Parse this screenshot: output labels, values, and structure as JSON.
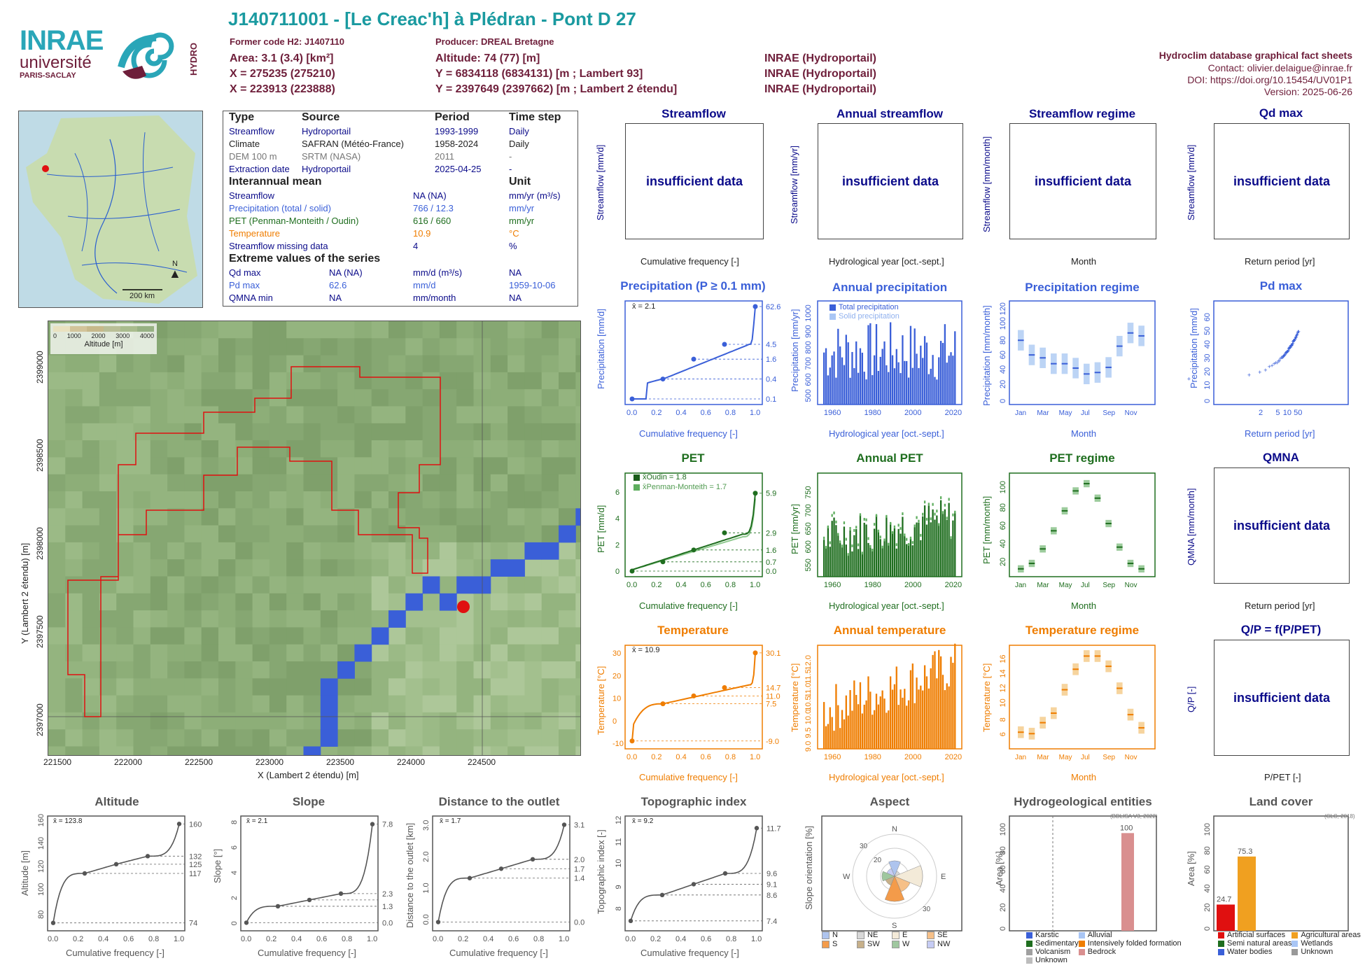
{
  "header": {
    "title": "J140711001 - [Le Creac'h] à Plédran - Pont D 27",
    "former_code": "Former code H2: J1407110",
    "producer": "Producer: DREAL Bretagne",
    "area": "Area: 3.1 (3.4) [km²]",
    "altitude": "Altitude: 74 (77) [m]",
    "x_l93": "X = 275235 (275210)",
    "y_l93": "Y = 6834118 (6834131) [m ; Lambert 93]",
    "x_l2": "X = 223913 (223888)",
    "y_l2": "Y = 2397649 (2397662) [m ; Lambert 2 étendu]",
    "src1": "INRAE (Hydroportail)",
    "src2": "INRAE (Hydroportail)",
    "src3": "INRAE (Hydroportail)",
    "db_title": "Hydroclim database graphical fact sheets",
    "contact": "Contact: olivier.delaigue@inrae.fr",
    "doi": "DOI: https://doi.org/10.15454/UV01P1",
    "version": "Version: 2025-06-26"
  },
  "logos": {
    "inrae": "INRAE",
    "universite": "université",
    "paris_saclay": "PARIS-SACLAY",
    "hydro": "HYDRO"
  },
  "overview_map": {
    "scale": "200 km",
    "north": "N"
  },
  "info_table": {
    "head": [
      "Type",
      "Source",
      "Period",
      "Time step"
    ],
    "rows": [
      [
        "Streamflow",
        "Hydroportail",
        "1993-1999",
        "Daily"
      ],
      [
        "Climate",
        "SAFRAN (Météo-France)",
        "1958-2024",
        "Daily"
      ],
      [
        "DEM 100 m",
        "SRTM (NASA)",
        "2011",
        "-"
      ],
      [
        "Extraction date",
        "Hydroportail",
        "2025-04-25",
        "-"
      ]
    ],
    "mean_title": "Interannual mean",
    "unit_title": "Unit",
    "means": [
      [
        "Streamflow",
        "NA (NA)",
        "mm/yr (m³/s)"
      ],
      [
        "Precipitation (total / solid)",
        "766 / 12.3",
        "mm/yr"
      ],
      [
        "PET (Penman-Monteith / Oudin)",
        "616 / 660",
        "mm/yr"
      ],
      [
        "Temperature",
        "10.9",
        "°C"
      ],
      [
        "Streamflow missing data",
        "4",
        "%"
      ]
    ],
    "extreme_title": "Extreme values of the series",
    "extremes": [
      [
        "Qd max",
        "NA (NA)",
        "mm/d (m³/s)",
        "NA"
      ],
      [
        "Pd max",
        "62.6",
        "mm/d",
        "1959-10-06"
      ],
      [
        "QMNA min",
        "NA",
        "mm/month",
        "NA"
      ]
    ]
  },
  "dem_map": {
    "legend_ticks": [
      "0",
      "1000",
      "2000",
      "3000",
      "4000"
    ],
    "legend_label": "Altitude [m]",
    "xticks": [
      "221500",
      "222000",
      "222500",
      "223000",
      "223500",
      "224000",
      "224500"
    ],
    "yticks": [
      "2397000",
      "2397500",
      "2398000",
      "2398500",
      "2399000"
    ],
    "xlabel": "X (Lambert 2 étendu) [m]",
    "ylabel": "Y (Lambert 2 étendu) [m]"
  },
  "panels": {
    "streamflow": {
      "title": "Streamflow",
      "ylabel": "Streamflow [mm/d]",
      "xlabel": "Cumulative frequency [-]",
      "msg": "insufficient data"
    },
    "annual_streamflow": {
      "title": "Annual streamflow",
      "ylabel": "Streamflow [mm/yr]",
      "xlabel": "Hydrological year [oct.-sept.]",
      "msg": "insufficient data"
    },
    "streamflow_regime": {
      "title": "Streamflow regime",
      "ylabel": "Streamflow [mm/month]",
      "xlabel": "Month",
      "msg": "insufficient data"
    },
    "qd_max": {
      "title": "Qd max",
      "ylabel": "Streamflow [mm/d]",
      "xlabel": "Return period [yr]",
      "msg": "insufficient data"
    },
    "precip": {
      "title": "Precipitation (P ≥ 0.1 mm)",
      "ylabel": "Precipitation [mm/d]",
      "xlabel": "Cumulative frequency [-]",
      "mean": "x̄ = 2.1"
    },
    "annual_precip": {
      "title": "Annual precipitation",
      "ylabel": "Precipitation [mm/yr]",
      "xlabel": "Hydrological year [oct.-sept.]",
      "leg1": "Total precipitation",
      "leg2": "Solid precipitation"
    },
    "precip_regime": {
      "title": "Precipitation regime",
      "ylabel": "Precipitation [mm/month]",
      "xlabel": "Month"
    },
    "pd_max": {
      "title": "Pd max",
      "ylabel": "Precipitation [mm/d]",
      "xlabel": "Return period [yr]"
    },
    "pet": {
      "title": "PET",
      "ylabel": "PET [mm/d]",
      "xlabel": "Cumulative frequency [-]",
      "mean1": "x̄Oudin = 1.8",
      "mean2": "x̄Penman-Monteith = 1.7"
    },
    "annual_pet": {
      "title": "Annual PET",
      "ylabel": "PET [mm/yr]",
      "xlabel": "Hydrological year [oct.-sept.]"
    },
    "pet_regime": {
      "title": "PET regime",
      "ylabel": "PET [mm/month]",
      "xlabel": "Month"
    },
    "qmna": {
      "title": "QMNA",
      "ylabel": "QMNA [mm/month]",
      "xlabel": "Return period [yr]",
      "msg": "insufficient data"
    },
    "temp": {
      "title": "Temperature",
      "ylabel": "Temperature [°C]",
      "xlabel": "Cumulative frequency [-]",
      "mean": "x̄ = 10.9"
    },
    "annual_temp": {
      "title": "Annual temperature",
      "ylabel": "Temperature [°C]",
      "xlabel": "Hydrological year [oct.-sept.]"
    },
    "temp_regime": {
      "title": "Temperature regime",
      "ylabel": "Temperature [°C]",
      "xlabel": "Month"
    },
    "qp": {
      "title": "Q/P = f(P/PET)",
      "ylabel": "Q/P [-]",
      "xlabel": "P/PET [-]",
      "msg": "insufficient data"
    },
    "altitude": {
      "title": "Altitude",
      "ylabel": "Altitude [m]",
      "xlabel": "Cumulative frequency [-]",
      "mean": "x̄ = 123.8"
    },
    "slope": {
      "title": "Slope",
      "ylabel": "Slope [°]",
      "xlabel": "Cumulative frequency [-]",
      "mean": "x̄ = 2.1"
    },
    "distance": {
      "title": "Distance to the outlet",
      "ylabel": "Distance to the outlet [km]",
      "xlabel": "Cumulative frequency [-]",
      "mean": "x̄ = 1.7"
    },
    "topo": {
      "title": "Topographic index",
      "ylabel": "Topographic index [-]",
      "xlabel": "Cumulative frequency [-]",
      "mean": "x̄ = 9.2"
    },
    "aspect": {
      "title": "Aspect",
      "ylabel": "Slope orientation [%]"
    },
    "hydrogeo": {
      "title": "Hydrogeological entities",
      "ylabel": "Area [%]",
      "source": "(BDLISA V3, 2022)"
    },
    "landcover": {
      "title": "Land cover",
      "ylabel": "Area [%]",
      "source": "(CLC, 2018)"
    }
  },
  "colors": {
    "blue": "#3a5fd8",
    "green": "#1f6e1f",
    "orange": "#ef7d00",
    "navy": "#0b0b8a",
    "teal": "#1a9aa0",
    "maroon": "#6e1e3a"
  },
  "chart_data": [
    {
      "id": "precip",
      "type": "line",
      "x": [
        0,
        0.25,
        0.5,
        0.75,
        1.0
      ],
      "y": [
        0.1,
        0.4,
        1.6,
        4.5,
        62.6
      ],
      "yticks": [
        "0.1",
        "0.4",
        "1.6",
        "4.5",
        "62.6"
      ],
      "xticks": [
        "0.0",
        "0.2",
        "0.4",
        "0.6",
        "0.8",
        "1.0"
      ]
    },
    {
      "id": "annual_precip",
      "type": "bar",
      "xticks": [
        "1960",
        "1980",
        "2000",
        "2020"
      ],
      "yticks": [
        "500",
        "600",
        "700",
        "800",
        "900",
        "1000"
      ],
      "ylim": [
        450,
        1060
      ]
    },
    {
      "id": "precip_regime",
      "type": "box",
      "categories": [
        "Jan",
        "Feb",
        "Mar",
        "Apr",
        "May",
        "Jun",
        "Jul",
        "Aug",
        "Sep",
        "Oct",
        "Nov",
        "Dec"
      ],
      "median": [
        82,
        62,
        58,
        50,
        50,
        44,
        36,
        38,
        45,
        74,
        92,
        88
      ],
      "yticks": [
        "0",
        "20",
        "40",
        "60",
        "80",
        "100",
        "120"
      ],
      "xticks": [
        "Jan",
        "Mar",
        "May",
        "Jul",
        "Sep",
        "Nov"
      ]
    },
    {
      "id": "pd_max",
      "type": "scatter",
      "xticks": [
        "2",
        "5",
        "10",
        "50"
      ],
      "yticks": [
        "0",
        "10",
        "20",
        "30",
        "40",
        "50",
        "60"
      ]
    },
    {
      "id": "pet",
      "type": "line",
      "series": [
        {
          "name": "Oudin",
          "y": [
            0.0,
            0.7,
            1.6,
            2.9,
            5.9
          ]
        },
        {
          "name": "Penman-Monteith"
        }
      ],
      "x": [
        0,
        0.25,
        0.5,
        0.75,
        1.0
      ],
      "yticks": [
        "0.0",
        "0.7",
        "1.6",
        "2.9",
        "5.9"
      ]
    },
    {
      "id": "annual_pet",
      "type": "bar",
      "xticks": [
        "1960",
        "1980",
        "2000",
        "2020"
      ],
      "yticks": [
        "550",
        "600",
        "650",
        "700",
        "750"
      ],
      "ylim": [
        520,
        790
      ]
    },
    {
      "id": "pet_regime",
      "type": "box",
      "categories": [
        "Jan",
        "Feb",
        "Mar",
        "Apr",
        "May",
        "Jun",
        "Jul",
        "Aug",
        "Sep",
        "Oct",
        "Nov",
        "Dec"
      ],
      "median": [
        14,
        20,
        36,
        56,
        78,
        100,
        108,
        92,
        64,
        38,
        20,
        14
      ],
      "yticks": [
        "20",
        "40",
        "60",
        "80",
        "100"
      ],
      "xticks": [
        "Jan",
        "Mar",
        "May",
        "Jul",
        "Sep",
        "Nov"
      ]
    },
    {
      "id": "temp",
      "type": "line",
      "x": [
        0,
        0.25,
        0.5,
        0.75,
        1.0
      ],
      "y": [
        -9.0,
        7.5,
        11.0,
        14.7,
        30.1
      ],
      "yticks": [
        "-9.0",
        "7.5",
        "11.0",
        "14.7",
        "30.1"
      ]
    },
    {
      "id": "annual_temp",
      "type": "bar",
      "xticks": [
        "1960",
        "1980",
        "2000",
        "2020"
      ],
      "yticks": [
        "9.0",
        "9.5",
        "10.0",
        "10.5",
        "11.0",
        "11.5",
        "12.0"
      ],
      "ylim": [
        8.9,
        12.5
      ]
    },
    {
      "id": "temp_regime",
      "type": "box",
      "categories": [
        "Jan",
        "Feb",
        "Mar",
        "Apr",
        "May",
        "Jun",
        "Jul",
        "Aug",
        "Sep",
        "Oct",
        "Nov",
        "Dec"
      ],
      "median": [
        6.2,
        6.0,
        7.5,
        8.8,
        12.0,
        14.8,
        16.6,
        16.6,
        15.2,
        12.2,
        8.6,
        6.8
      ],
      "yticks": [
        "6",
        "8",
        "10",
        "12",
        "14",
        "16"
      ],
      "xticks": [
        "Jan",
        "Mar",
        "May",
        "Jul",
        "Sep",
        "Nov"
      ]
    },
    {
      "id": "altitude",
      "type": "line",
      "x": [
        0,
        0.25,
        0.5,
        0.75,
        1.0
      ],
      "y": [
        74,
        117,
        125,
        132,
        160
      ],
      "yticks": [
        "80",
        "100",
        "120",
        "140",
        "160"
      ],
      "rticks": [
        "74",
        "117",
        "125",
        "132",
        "160"
      ]
    },
    {
      "id": "slope",
      "type": "line",
      "x": [
        0,
        0.25,
        0.5,
        0.75,
        1.0
      ],
      "y": [
        0.0,
        1.3,
        1.8,
        2.3,
        7.8
      ],
      "yticks": [
        "0",
        "2",
        "4",
        "6",
        "8"
      ],
      "rticks": [
        "0.0",
        "1.3",
        "2.3",
        "7.8"
      ]
    },
    {
      "id": "distance",
      "type": "line",
      "x": [
        0,
        0.25,
        0.5,
        0.75,
        1.0
      ],
      "y": [
        0.0,
        1.4,
        1.7,
        2.0,
        3.1
      ],
      "yticks": [
        "0.0",
        "1.0",
        "2.0",
        "3.0"
      ],
      "rticks": [
        "0.0",
        "1.4",
        "1.7",
        "2.0",
        "3.1"
      ]
    },
    {
      "id": "topo",
      "type": "line",
      "x": [
        0,
        0.25,
        0.5,
        0.75,
        1.0
      ],
      "y": [
        7.4,
        8.6,
        9.1,
        9.6,
        11.7
      ],
      "yticks": [
        "8",
        "9",
        "10",
        "11",
        "12"
      ],
      "rticks": [
        "7.4",
        "8.6",
        "9.1",
        "9.6",
        "11.7"
      ]
    },
    {
      "id": "aspect",
      "type": "pie",
      "labels": [
        "N",
        "NE",
        "E",
        "SE",
        "S",
        "SW",
        "W",
        "NW"
      ],
      "rings": [
        "10",
        "20",
        "30"
      ]
    },
    {
      "id": "hydrogeo",
      "type": "bar",
      "categories": [
        "Karstic",
        "Alluvial",
        "Sedimentary",
        "Intensively folded formation",
        "Volcanism",
        "Bedrock",
        "Unknown"
      ],
      "values": [
        0,
        0,
        0,
        0,
        0,
        100,
        0
      ],
      "yticks": [
        "0",
        "20",
        "40",
        "60",
        "80",
        "100"
      ]
    },
    {
      "id": "landcover",
      "type": "bar",
      "categories": [
        "Artificial surfaces",
        "Agricultural areas",
        "Semi natural areas",
        "Wetlands",
        "Water bodies",
        "Unknown"
      ],
      "values": [
        24.7,
        75.3,
        0,
        0,
        0,
        0
      ],
      "yticks": [
        "0",
        "20",
        "40",
        "60",
        "80",
        "100"
      ]
    }
  ]
}
